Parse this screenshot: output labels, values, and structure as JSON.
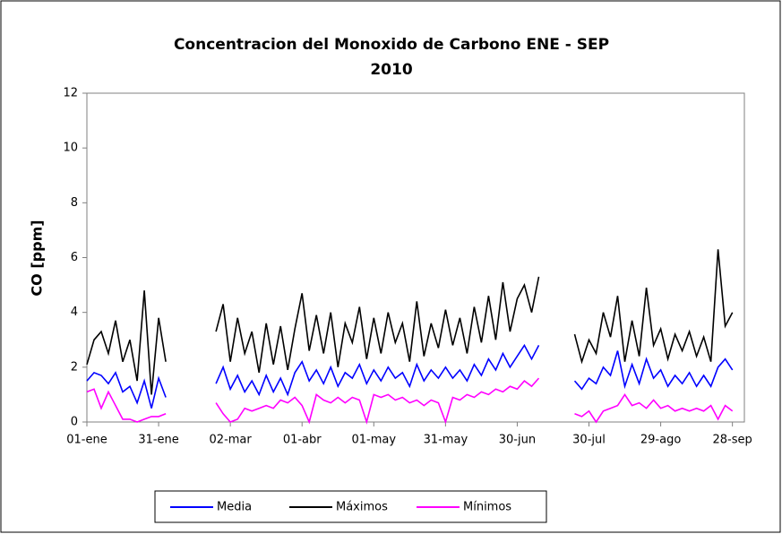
{
  "chart_data": {
    "type": "line",
    "title": [
      "Concentracion del Monoxido de Carbono ENE - SEP",
      "2010"
    ],
    "ylabel": "CO [ppm]",
    "x": [
      1,
      4,
      7,
      10,
      13,
      16,
      19,
      22,
      25,
      28,
      31,
      34,
      37,
      40,
      43,
      46,
      49,
      52,
      55,
      58,
      61,
      64,
      67,
      70,
      73,
      76,
      79,
      82,
      85,
      88,
      91,
      94,
      97,
      100,
      103,
      106,
      109,
      112,
      115,
      118,
      121,
      124,
      127,
      130,
      133,
      136,
      139,
      142,
      145,
      148,
      151,
      154,
      157,
      160,
      163,
      166,
      169,
      172,
      175,
      178,
      181,
      184,
      187,
      190,
      193,
      196,
      199,
      202,
      205,
      208,
      211,
      214,
      217,
      220,
      223,
      226,
      229,
      232,
      235,
      238,
      241,
      244,
      247,
      250,
      253,
      256,
      259,
      262,
      265,
      268,
      271
    ],
    "xlim": [
      1,
      276
    ],
    "xticks": [
      {
        "value": 1,
        "label": "01-ene"
      },
      {
        "value": 31,
        "label": "31-ene"
      },
      {
        "value": 61,
        "label": "02-mar"
      },
      {
        "value": 91,
        "label": "01-abr"
      },
      {
        "value": 121,
        "label": "01-may"
      },
      {
        "value": 151,
        "label": "31-may"
      },
      {
        "value": 181,
        "label": "30-jun"
      },
      {
        "value": 211,
        "label": "30-jul"
      },
      {
        "value": 241,
        "label": "29-ago"
      },
      {
        "value": 271,
        "label": "28-sep"
      }
    ],
    "ylim": [
      0,
      12
    ],
    "yticks": [
      0,
      2,
      4,
      6,
      8,
      10,
      12
    ],
    "grid": false,
    "legend": "bottom",
    "series": [
      {
        "name": "Media",
        "color": "#0000ff",
        "values": [
          1.5,
          1.8,
          1.7,
          1.4,
          1.8,
          1.1,
          1.3,
          0.7,
          1.5,
          0.5,
          1.6,
          0.9,
          null,
          null,
          null,
          null,
          null,
          null,
          1.4,
          2.0,
          1.2,
          1.7,
          1.1,
          1.5,
          1.0,
          1.7,
          1.1,
          1.6,
          1.0,
          1.8,
          2.2,
          1.5,
          1.9,
          1.4,
          2.0,
          1.3,
          1.8,
          1.6,
          2.1,
          1.4,
          1.9,
          1.5,
          2.0,
          1.6,
          1.8,
          1.3,
          2.1,
          1.5,
          1.9,
          1.6,
          2.0,
          1.6,
          1.9,
          1.5,
          2.1,
          1.7,
          2.3,
          1.9,
          2.5,
          2.0,
          2.4,
          2.8,
          2.3,
          2.8,
          null,
          null,
          null,
          null,
          1.5,
          1.2,
          1.6,
          1.4,
          2.0,
          1.7,
          2.6,
          1.3,
          2.1,
          1.4,
          2.3,
          1.6,
          1.9,
          1.3,
          1.7,
          1.4,
          1.8,
          1.3,
          1.7,
          1.3,
          2.0,
          2.3,
          1.9
        ]
      },
      {
        "name": "Máximos",
        "color": "#000000",
        "values": [
          2.1,
          3.0,
          3.3,
          2.5,
          3.7,
          2.2,
          3.0,
          1.5,
          4.8,
          1.0,
          3.8,
          2.2,
          null,
          null,
          null,
          null,
          null,
          null,
          3.3,
          4.3,
          2.2,
          3.8,
          2.5,
          3.3,
          1.8,
          3.6,
          2.1,
          3.5,
          1.9,
          3.4,
          4.7,
          2.6,
          3.9,
          2.5,
          4.0,
          2.0,
          3.6,
          2.9,
          4.2,
          2.3,
          3.8,
          2.5,
          4.0,
          2.9,
          3.6,
          2.2,
          4.4,
          2.4,
          3.6,
          2.7,
          4.1,
          2.8,
          3.8,
          2.5,
          4.2,
          2.9,
          4.6,
          3.0,
          5.1,
          3.3,
          4.5,
          5.0,
          4.0,
          5.3,
          null,
          null,
          null,
          null,
          3.2,
          2.2,
          3.0,
          2.5,
          4.0,
          3.1,
          4.6,
          2.2,
          3.7,
          2.4,
          4.9,
          2.8,
          3.4,
          2.3,
          3.2,
          2.6,
          3.3,
          2.4,
          3.1,
          2.2,
          6.3,
          3.5,
          4.0
        ]
      },
      {
        "name": "Mínimos",
        "color": "#ff00ff",
        "values": [
          1.1,
          1.2,
          0.5,
          1.1,
          0.6,
          0.1,
          0.1,
          0.0,
          0.1,
          0.2,
          0.2,
          0.3,
          null,
          null,
          null,
          null,
          null,
          null,
          0.7,
          0.3,
          0.0,
          0.1,
          0.5,
          0.4,
          0.5,
          0.6,
          0.5,
          0.8,
          0.7,
          0.9,
          0.6,
          0.0,
          1.0,
          0.8,
          0.7,
          0.9,
          0.7,
          0.9,
          0.8,
          0.0,
          1.0,
          0.9,
          1.0,
          0.8,
          0.9,
          0.7,
          0.8,
          0.6,
          0.8,
          0.7,
          0.0,
          0.9,
          0.8,
          1.0,
          0.9,
          1.1,
          1.0,
          1.2,
          1.1,
          1.3,
          1.2,
          1.5,
          1.3,
          1.6,
          null,
          null,
          null,
          null,
          0.3,
          0.2,
          0.4,
          0.0,
          0.4,
          0.5,
          0.6,
          1.0,
          0.6,
          0.7,
          0.5,
          0.8,
          0.5,
          0.6,
          0.4,
          0.5,
          0.4,
          0.5,
          0.4,
          0.6,
          0.1,
          0.6,
          0.4
        ]
      }
    ]
  }
}
